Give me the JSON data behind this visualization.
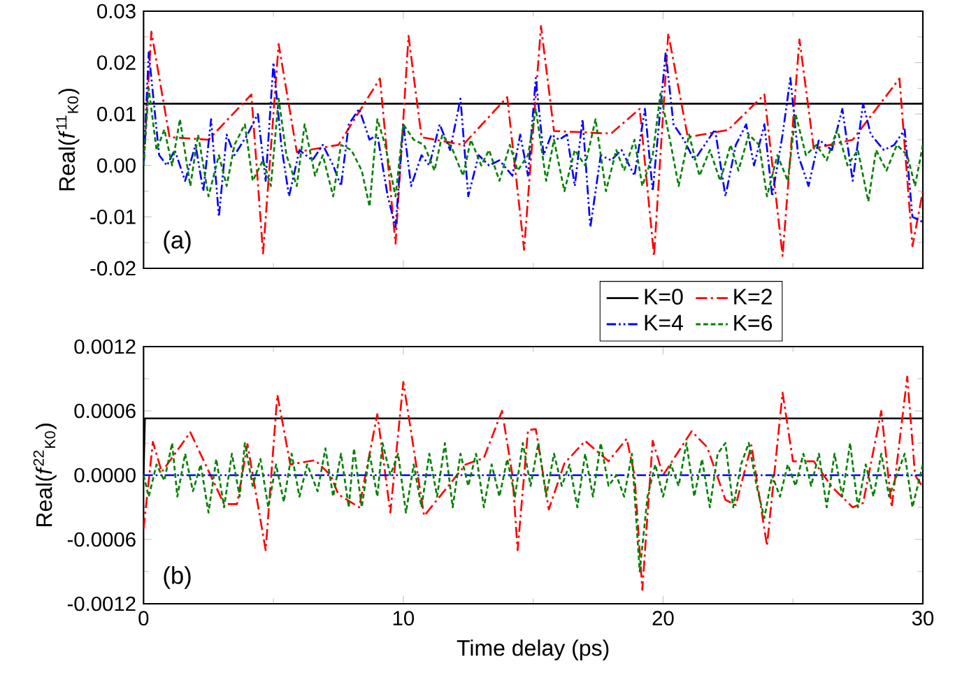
{
  "chart_data": [
    {
      "type": "line",
      "ylabel": "Real(*f*$^{11}$$_{K0}$)",
      "xlim": [
        0,
        30
      ],
      "xticks": [
        0,
        10,
        20,
        30
      ],
      "tick_labels": "y",
      "ylim": [
        -0.02,
        0.03
      ],
      "yticks": [
        {
          "value": -0.02,
          "label": "-0.02"
        },
        {
          "value": -0.01,
          "label": "-0.01"
        },
        {
          "value": 0,
          "label": "0.00"
        },
        {
          "value": 0.01,
          "label": "0.01"
        },
        {
          "value": 0.02,
          "label": "0.02"
        },
        {
          "value": 0.03,
          "label": "0.03"
        }
      ],
      "annotations": [
        "(a)"
      ],
      "series": [
        {
          "color": "#000000",
          "line_style": "solid",
          "x": [
            0,
            30
          ],
          "values": [
            0.012,
            0.012
          ]
        },
        {
          "color": "#ff0000",
          "line_style": "dashdot",
          "x": [
            0,
            0.3,
            1.0,
            2.5,
            4.15,
            4.6,
            5.2,
            5.9,
            7.5,
            9.1,
            9.7,
            10.2,
            10.7,
            12.3,
            14.0,
            14.65,
            15.3,
            15.8,
            18.0,
            19.1,
            19.65,
            20.2,
            20.95,
            22.5,
            23.9,
            24.6,
            25.25,
            25.8,
            27.3,
            29.1,
            29.6,
            30
          ],
          "values": [
            0,
            0.026,
            0.0055,
            0.005,
            0.0138,
            -0.0171,
            0.0236,
            0.0026,
            0.004,
            0.0169,
            -0.0152,
            0.0252,
            0.0055,
            0.004,
            0.0133,
            -0.0164,
            0.0271,
            0.0067,
            0.0062,
            0.011,
            -0.0176,
            0.0257,
            0.0055,
            0.0069,
            0.0138,
            -0.0176,
            0.0245,
            0.0033,
            0.005,
            0.0169,
            -0.0157,
            -0.005
          ]
        },
        {
          "color": "#0000ff",
          "line_style": "dashdotdot",
          "x": [
            0,
            0.2,
            0.4,
            0.6,
            0.9,
            1.2,
            1.6,
            2.0,
            2.3,
            2.6,
            2.9,
            3.2,
            3.5,
            4.0,
            4.4,
            4.7,
            5.0,
            5.3,
            5.6,
            6.0,
            6.5,
            6.9,
            7.3,
            7.6,
            7.9,
            8.3,
            8.7,
            9.0,
            9.4,
            9.7,
            10.0,
            10.3,
            10.7,
            11.0,
            11.4,
            11.8,
            12.2,
            12.5,
            12.9,
            13.3,
            13.7,
            14.2,
            14.5,
            14.8,
            15.1,
            15.4,
            15.7,
            16.0,
            16.3,
            16.6,
            16.9,
            17.2,
            17.6,
            18.0,
            18.4,
            18.9,
            19.3,
            19.6,
            20.1,
            20.4,
            20.8,
            21.2,
            21.6,
            22.0,
            22.4,
            22.8,
            23.2,
            23.5,
            23.9,
            24.2,
            24.6,
            24.9,
            25.2,
            25.6,
            26.0,
            26.5,
            26.9,
            27.3,
            27.7,
            28.0,
            28.5,
            28.9,
            29.3,
            29.6,
            30.0
          ],
          "values": [
            0,
            0.022,
            0.012,
            0.002,
            0,
            0.003,
            -0.003,
            0.004,
            -0.005,
            0.009,
            -0.01,
            0.006,
            0.002,
            0.006,
            0.01,
            -0.003,
            0.02,
            0.004,
            -0.006,
            0.003,
            0.001,
            0.004,
            0,
            -0.004,
            0.008,
            0.011,
            0.005,
            0.006,
            -0.006,
            -0.012,
            0.008,
            -0.004,
            0.002,
            0,
            0.008,
            0.003,
            0.013,
            -0.006,
            0.002,
            0,
            0.001,
            -0.002,
            0.006,
            -0.002,
            0.017,
            0.002,
            0.006,
            0.005,
            0.006,
            -0.004,
            0.009,
            -0.012,
            0.002,
            0.001,
            0.003,
            -0.002,
            0.011,
            -0.005,
            0.022,
            0.008,
            0.005,
            0.001,
            0.004,
            0.007,
            -0.006,
            0.004,
            0.008,
            0,
            0.008,
            -0.006,
            0.006,
            0.017,
            0.002,
            -0.004,
            0.005,
            0.003,
            0.011,
            -0.003,
            0.012,
            0.006,
            0.003,
            0.004,
            0.007,
            -0.01,
            -0.011
          ]
        },
        {
          "color": "#008000",
          "line_style": "dashed",
          "x": [
            0,
            0.2,
            0.5,
            0.8,
            1.1,
            1.4,
            1.8,
            2.1,
            2.5,
            2.9,
            3.2,
            3.5,
            3.9,
            4.2,
            4.6,
            4.9,
            5.2,
            5.5,
            5.9,
            6.2,
            6.6,
            6.9,
            7.3,
            7.6,
            8.0,
            8.4,
            8.7,
            9.0,
            9.3,
            9.7,
            10.0,
            10.4,
            10.8,
            11.2,
            11.5,
            11.9,
            12.3,
            12.6,
            13.0,
            13.3,
            13.7,
            14.1,
            14.4,
            14.8,
            15.1,
            15.5,
            15.8,
            16.2,
            16.6,
            17.0,
            17.4,
            17.8,
            18.2,
            18.5,
            18.9,
            19.2,
            19.6,
            19.9,
            20.3,
            20.6,
            21.0,
            21.4,
            21.8,
            22.2,
            22.6,
            22.9,
            23.3,
            23.7,
            24.0,
            24.4,
            24.8,
            25.1,
            25.5,
            25.9,
            26.3,
            26.7,
            27.1,
            27.5,
            27.9,
            28.2,
            28.6,
            29.0,
            29.4,
            29.7,
            30.0
          ],
          "values": [
            0,
            0.015,
            0.003,
            0.007,
            0,
            0.009,
            -0.004,
            0.006,
            -0.006,
            0.002,
            -0.004,
            0.004,
            0.008,
            -0.003,
            0.001,
            -0.004,
            0.013,
            0.002,
            -0.004,
            0.008,
            -0.002,
            0.002,
            -0.006,
            0.004,
            0.003,
            -0.001,
            -0.008,
            0.009,
            0.004,
            -0.006,
            0.008,
            0.005,
            0.004,
            -0.001,
            0.006,
            0.003,
            -0.002,
            0.005,
            0,
            0.003,
            -0.003,
            0.004,
            -0.001,
            0.002,
            0.011,
            -0.003,
            0.005,
            -0.005,
            0.003,
            0,
            0.009,
            -0.005,
            0.003,
            -0.001,
            0.005,
            -0.004,
            0.002,
            0.014,
            0.004,
            -0.004,
            0.006,
            -0.002,
            0.003,
            -0.003,
            0.004,
            -0.001,
            0.006,
            0.004,
            -0.006,
            0.002,
            -0.003,
            0.01,
            0.002,
            0.004,
            0.001,
            0.007,
            0,
            0.003,
            -0.007,
            0.003,
            -0.001,
            0.004,
            0.002,
            -0.004,
            0.004
          ]
        }
      ]
    },
    {
      "type": "line",
      "xlabel": "Time delay (ps)",
      "ylabel": "Real(*f*$^{22}$$_{K0}$)",
      "xlim": [
        0,
        30
      ],
      "xticks": [
        0,
        10,
        20,
        30
      ],
      "ylim": [
        -0.0012,
        0.0012
      ],
      "yticks": [
        {
          "value": -0.0012,
          "label": "-0.0012"
        },
        {
          "value": -0.0006,
          "label": "-0.0006"
        },
        {
          "value": 0,
          "label": "0.0000"
        },
        {
          "value": 0.0006,
          "label": "0.0006"
        },
        {
          "value": 0.0012,
          "label": "0.0012"
        }
      ],
      "annotations": [
        "(b)"
      ],
      "legend": "top right",
      "series": [
        {
          "name": "K=0",
          "color": "#000000",
          "line_style": "solid",
          "x": [
            0,
            0.05,
            30
          ],
          "values": [
            0,
            0.00053,
            0.00053
          ]
        },
        {
          "name": "K=2",
          "color": "#ff0000",
          "line_style": "dashdot",
          "x": [
            0,
            0.36,
            0.7,
            1.8,
            3.1,
            3.6,
            4.0,
            4.7,
            5.15,
            5.65,
            6.6,
            7.2,
            7.5,
            8.3,
            9.0,
            9.5,
            10.0,
            10.8,
            11.3,
            12.4,
            13.1,
            13.8,
            14.2,
            14.4,
            14.8,
            15.1,
            15.6,
            16.2,
            17.0,
            17.9,
            18.6,
            18.9,
            19.2,
            19.6,
            20.0,
            21.1,
            21.7,
            22.4,
            22.8,
            23.4,
            24.0,
            24.6,
            25.0,
            25.8,
            26.5,
            27.3,
            27.7,
            28.4,
            28.8,
            29.4,
            29.7,
            30
          ],
          "values": [
            -0.0005,
            0.00031,
            3e-05,
            0.0004,
            -0.00027,
            -0.00027,
            0.00029,
            -0.0007,
            0.00075,
            0.0001,
            0.00014,
            0,
            -0.00018,
            -0.0003,
            0.00057,
            -0.00035,
            0.00087,
            -0.00038,
            -0.00023,
            0.0001,
            0.00016,
            0.0006,
            0,
            -0.0007,
            0.00042,
            0.00043,
            -0.00032,
            0.00011,
            0.00032,
            0.00013,
            0.00034,
            0,
            -0.00107,
            0.00032,
            0,
            0.00041,
            0.00026,
            -0.00023,
            -0.00028,
            0.00028,
            -0.00066,
            0.00077,
            0.00013,
            0.00013,
            -0.00011,
            -0.0003,
            -0.00026,
            0.0006,
            -0.0003,
            0.00092,
            0,
            -0.00011
          ]
        },
        {
          "name": "K=4",
          "color": "#0000ff",
          "line_style": "dashdotdot",
          "x": [
            0,
            5,
            10,
            15,
            20,
            25,
            30
          ],
          "values": [
            0,
            0,
            0,
            0,
            0,
            0,
            0
          ]
        },
        {
          "name": "K=6",
          "color": "#008000",
          "line_style": "dashed",
          "x": [
            0,
            0.2,
            0.5,
            0.8,
            1.1,
            1.3,
            1.6,
            1.9,
            2.2,
            2.5,
            2.8,
            3.1,
            3.4,
            3.7,
            3.9,
            4.2,
            4.5,
            4.8,
            5.1,
            5.4,
            5.7,
            6.0,
            6.3,
            6.7,
            7.0,
            7.3,
            7.6,
            7.9,
            8.1,
            8.4,
            8.7,
            9.0,
            9.2,
            9.5,
            9.8,
            10.1,
            10.4,
            10.7,
            11.0,
            11.3,
            11.6,
            11.9,
            12.2,
            12.5,
            12.8,
            13.1,
            13.4,
            13.7,
            14.0,
            14.3,
            14.6,
            14.9,
            15.2,
            15.5,
            15.8,
            16.1,
            16.4,
            16.7,
            17.0,
            17.3,
            17.6,
            17.9,
            18.2,
            18.5,
            18.8,
            19.1,
            19.4,
            19.7,
            20.0,
            20.3,
            20.6,
            20.9,
            21.2,
            21.5,
            21.8,
            22.1,
            22.4,
            22.7,
            23.0,
            23.3,
            23.6,
            23.9,
            24.2,
            24.5,
            24.8,
            25.1,
            25.4,
            25.7,
            26.0,
            26.3,
            26.6,
            26.9,
            27.2,
            27.5,
            27.8,
            28.1,
            28.4,
            28.7,
            29.0,
            29.3,
            29.6,
            30.0
          ],
          "values": [
            0,
            -0.0002,
            0.0001,
            -5e-05,
            0.0003,
            -0.0002,
            0.0002,
            -0.00015,
            0.0001,
            -0.00035,
            0.00015,
            -0.0003,
            0.0002,
            -0.0002,
            0.0003,
            -0.0001,
            0.00015,
            -0.0003,
            0.0001,
            -0.00025,
            0.0002,
            -0.0002,
            0.0001,
            -0.00015,
            0.00025,
            -0.0002,
            0.0002,
            -0.0003,
            0.00025,
            -0.0003,
            0.0002,
            -0.0002,
            0.0003,
            0,
            0.0002,
            -0.00035,
            0.0001,
            -0.0003,
            0.0002,
            -0.0002,
            0.0003,
            -0.0003,
            0.0002,
            -0.0001,
            0.0002,
            -0.0003,
            0.0001,
            -0.0002,
            0.00015,
            -0.0002,
            0.0003,
            -0.0001,
            0.0003,
            -0.0002,
            0.0002,
            -0.0001,
            0.0001,
            -0.0003,
            0.0002,
            -0.0002,
            0.0003,
            -0.0001,
            0,
            -0.0002,
            0.0002,
            -0.0009,
            -0.0002,
            0.0001,
            -0.0002,
            0.0001,
            -0.0001,
            0.0003,
            -0.0002,
            0.00015,
            -0.0003,
            0.0002,
            0.0003,
            -0.0003,
            0.0001,
            0.0003,
            -0.0001,
            -0.0004,
            0,
            -0.0002,
            0.0001,
            -0.0001,
            0.0002,
            -0.0001,
            0.0002,
            -0.0003,
            0.0002,
            -0.0002,
            0.0003,
            -0.0003,
            0.0001,
            -0.0002,
            0.0002,
            -0.0002,
            0,
            0.0002,
            -0.0003,
            0.0001
          ]
        }
      ]
    }
  ]
}
